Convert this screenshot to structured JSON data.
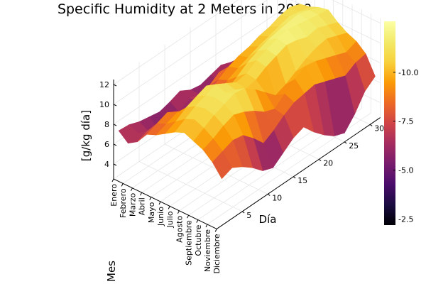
{
  "chart_data": {
    "type": "surface",
    "title": "Specific Humidity at 2 Meters in 2018",
    "xlabel": "Mes",
    "ylabel": "Día",
    "zlabel": "[g/kg día]",
    "x_ticks": [
      "Enero",
      "Febrero",
      "Marzo",
      "Abril",
      "Mayo",
      "Junio",
      "Julio",
      "Agosto",
      "Septiembre",
      "Octubre",
      "Noviembre",
      "Diciembre"
    ],
    "y_ticks": [
      5,
      10,
      15,
      20,
      25,
      30
    ],
    "z_ticks": [
      4,
      6,
      8,
      10,
      12
    ],
    "zlim": [
      2.5,
      12.5
    ],
    "colorbar": {
      "colormap": "inferno",
      "ticks": [
        2.5,
        5.0,
        7.5,
        10.0
      ],
      "tick_labels": [
        "2.5",
        "5.0",
        "7.5",
        "10.0"
      ],
      "range": [
        2.2,
        12.6
      ]
    },
    "days": [
      1,
      3,
      5,
      7,
      9,
      11,
      13,
      15,
      17,
      19,
      21,
      23,
      25,
      27,
      29,
      31
    ],
    "months": [
      "Enero",
      "Febrero",
      "Marzo",
      "Abril",
      "Mayo",
      "Junio",
      "Julio",
      "Agosto",
      "Septiembre",
      "Octubre",
      "Noviembre",
      "Diciembre"
    ],
    "values": [
      [
        7.0,
        6.9,
        6.5,
        6.3,
        6.1,
        6.4,
        6.8,
        6.2,
        6.0,
        6.3,
        6.6,
        6.2,
        6.0,
        6.4,
        6.7,
        6.5
      ],
      [
        6.2,
        6.5,
        6.0,
        5.4,
        5.2,
        5.8,
        6.5,
        6.2,
        5.6,
        6.0,
        6.6,
        6.3,
        6.8,
        6.9,
        6.5,
        6.2
      ],
      [
        6.8,
        7.2,
        6.5,
        6.0,
        5.0,
        5.5,
        6.8,
        7.5,
        8.2,
        7.6,
        6.8,
        7.2,
        8.0,
        8.6,
        9.0,
        8.5
      ],
      [
        8.0,
        8.4,
        8.8,
        8.2,
        7.4,
        6.5,
        7.8,
        8.6,
        9.2,
        9.6,
        9.8,
        10.2,
        10.4,
        10.8,
        11.0,
        10.6
      ],
      [
        8.4,
        8.8,
        9.2,
        8.6,
        7.8,
        6.8,
        8.2,
        9.0,
        9.5,
        9.9,
        10.3,
        10.6,
        10.9,
        11.2,
        11.0,
        10.8
      ],
      [
        9.0,
        9.5,
        10.2,
        10.6,
        11.0,
        10.0,
        9.2,
        9.8,
        10.5,
        11.0,
        11.4,
        11.6,
        11.8,
        11.9,
        11.6,
        11.2
      ],
      [
        9.6,
        10.2,
        10.8,
        11.2,
        11.6,
        11.0,
        10.4,
        10.6,
        11.2,
        11.6,
        12.0,
        12.2,
        12.0,
        11.8,
        11.6,
        11.4
      ],
      [
        10.0,
        10.6,
        11.0,
        11.4,
        11.2,
        10.8,
        10.2,
        10.4,
        11.0,
        11.4,
        11.8,
        11.6,
        11.2,
        11.4,
        11.0,
        10.6
      ],
      [
        9.6,
        10.2,
        10.8,
        11.2,
        11.6,
        11.4,
        10.6,
        9.6,
        8.6,
        9.0,
        9.6,
        10.2,
        10.6,
        10.8,
        10.4,
        10.0
      ],
      [
        9.2,
        9.6,
        10.2,
        10.6,
        10.2,
        9.6,
        8.8,
        8.4,
        9.2,
        10.0,
        10.6,
        10.4,
        10.0,
        9.6,
        9.2,
        9.6
      ],
      [
        8.4,
        8.8,
        9.2,
        9.0,
        8.0,
        6.8,
        7.4,
        8.2,
        8.8,
        9.0,
        9.2,
        8.8,
        8.4,
        8.0,
        8.6,
        8.8
      ],
      [
        7.2,
        7.6,
        7.0,
        6.2,
        5.2,
        4.8,
        5.6,
        6.4,
        6.8,
        5.6,
        4.6,
        3.8,
        3.4,
        4.6,
        6.2,
        7.0
      ]
    ]
  }
}
